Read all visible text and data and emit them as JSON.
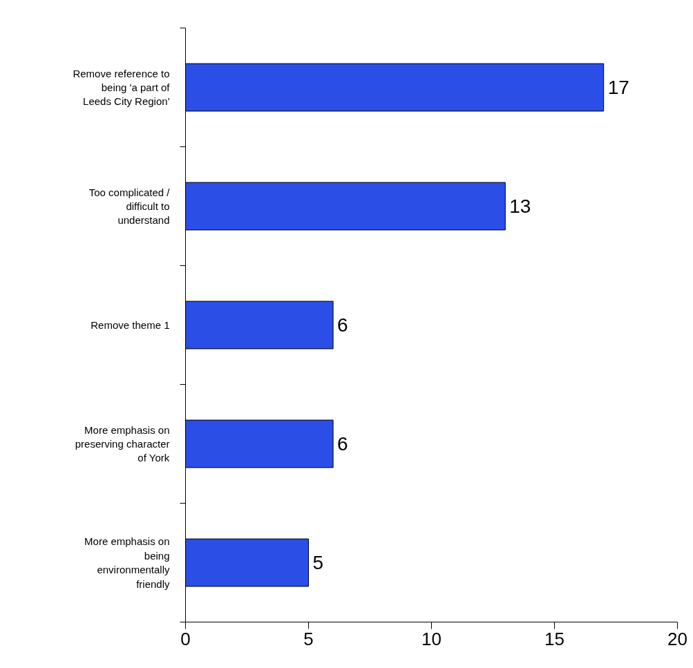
{
  "chart_data": {
    "type": "bar",
    "orientation": "horizontal",
    "categories": [
      "Remove reference to being 'a part of Leeds City Region'",
      "Too complicated / difficult to understand",
      "Remove theme 1",
      "More emphasis on preserving character of York",
      "More emphasis on being environmentally friendly"
    ],
    "values": [
      17,
      13,
      6,
      6,
      5
    ],
    "color": "#2a4ee6",
    "xlim": [
      0,
      20
    ],
    "xticks": [
      0,
      5,
      10,
      15,
      20
    ],
    "data_labels": true,
    "grid": false
  }
}
